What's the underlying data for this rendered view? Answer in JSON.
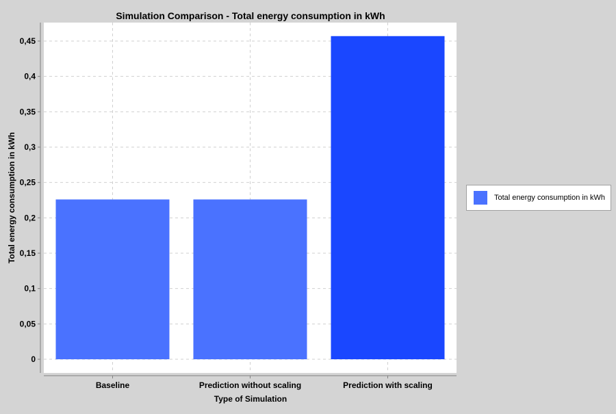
{
  "chart_data": {
    "type": "bar",
    "title": "Simulation Comparison - Total energy consumption in kWh",
    "xlabel": "Type of Simulation",
    "ylabel": "Total energy consumption in kWh",
    "categories": [
      "Baseline",
      "Prediction without scaling",
      "Prediction with scaling"
    ],
    "series": [
      {
        "name": "Total energy consumption in kWh",
        "values": [
          0.226,
          0.226,
          0.457
        ],
        "colors": [
          "#4a72ff",
          "#4a72ff",
          "#1a47ff"
        ]
      }
    ],
    "ylim": [
      0,
      0.45
    ],
    "yticks": [
      "0",
      "0,05",
      "0,1",
      "0,15",
      "0,2",
      "0,25",
      "0,3",
      "0,35",
      "0,4",
      "0,45"
    ],
    "grid": true,
    "legend_position": "right"
  }
}
